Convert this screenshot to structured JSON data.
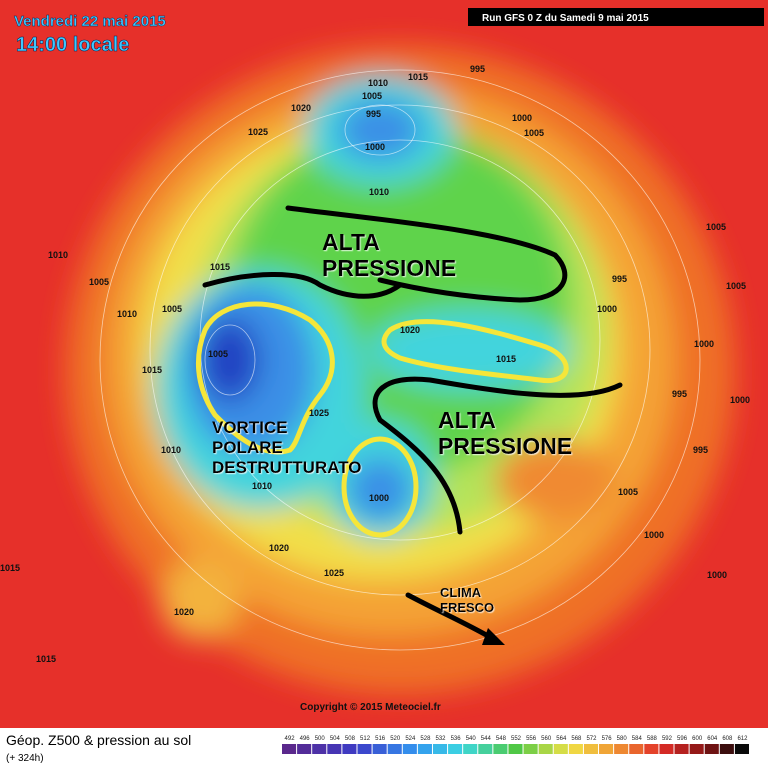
{
  "header": {
    "date": "Vendredi 22 mai 2015",
    "time": "14:00 locale",
    "run": "Run GFS 0 Z du Samedi 9 mai 2015"
  },
  "annotations": [
    [
      "ALTA",
      "PRESSIONE"
    ],
    [
      "ALTA",
      "PRESSIONE"
    ],
    [
      "VORTICE",
      "POLARE",
      "DESTRUTTURATO"
    ],
    [
      "CLIMA",
      "FRESCO"
    ]
  ],
  "isobar_labels": [
    1010,
    1005,
    995,
    1000,
    1020,
    1025,
    1015,
    995,
    1000,
    1005,
    1010,
    1005,
    995,
    1000,
    1005,
    1000,
    995,
    1000,
    995,
    1010,
    1005,
    1010,
    1005,
    1015,
    1010,
    1005,
    1025,
    1020,
    1015,
    1000,
    1010,
    1020,
    1025,
    1020,
    1015,
    1015,
    1000,
    1000,
    1015,
    1005
  ],
  "copyright": "Copyright © 2015 Meteociel.fr",
  "footer": {
    "title": "Géop. Z500 & pression au sol",
    "lead": "(+ 324h)"
  },
  "scale": [
    492,
    496,
    500,
    504,
    508,
    512,
    516,
    520,
    524,
    528,
    532,
    536,
    540,
    544,
    548,
    552,
    556,
    560,
    564,
    568,
    572,
    576,
    580,
    584,
    588,
    592,
    596,
    600,
    604,
    608,
    612
  ]
}
